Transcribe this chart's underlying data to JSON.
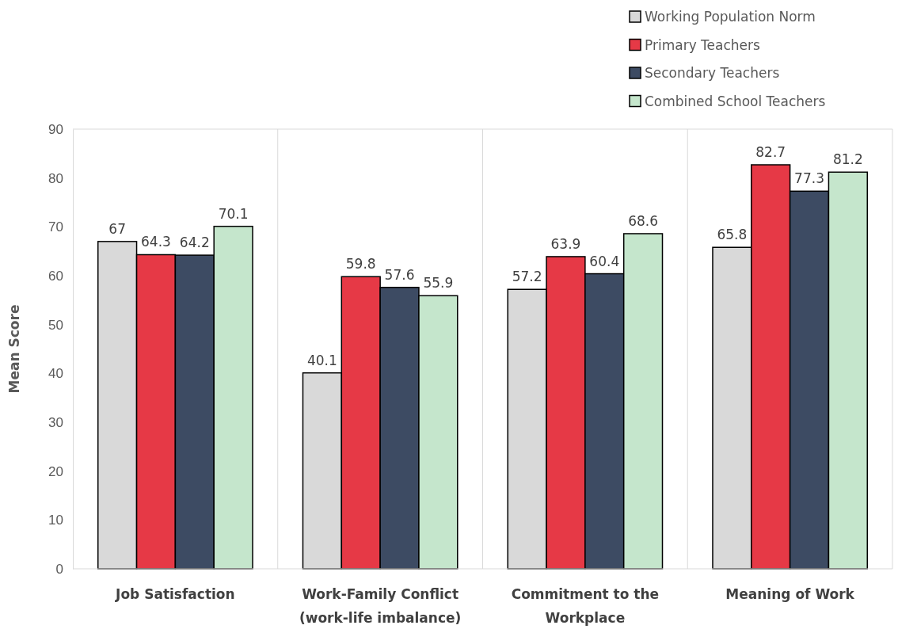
{
  "chart_data": {
    "type": "bar",
    "ylabel": "Mean Score",
    "categories": [
      "Job Satisfaction",
      "Work-Family Conflict (work-life imbalance)",
      "Commitment to the Workplace",
      "Meaning of Work"
    ],
    "series": [
      {
        "name": "Working Population Norm",
        "color": "#d9d9d9",
        "values": [
          67,
          40.1,
          57.2,
          65.8
        ]
      },
      {
        "name": "Primary Teachers",
        "color": "#e63946",
        "values": [
          64.3,
          59.8,
          63.9,
          82.7
        ]
      },
      {
        "name": "Secondary Teachers",
        "color": "#3d4b63",
        "values": [
          64.2,
          57.6,
          60.4,
          77.3
        ]
      },
      {
        "name": "Combined School Teachers",
        "color": "#c5e6cc",
        "values": [
          70.1,
          55.9,
          68.6,
          81.2
        ]
      }
    ],
    "ylim": [
      0,
      90
    ],
    "yticks": [
      0,
      10,
      20,
      30,
      40,
      50,
      60,
      70,
      80,
      90
    ],
    "grid": "x",
    "legend": "top right",
    "data_labels": true
  }
}
